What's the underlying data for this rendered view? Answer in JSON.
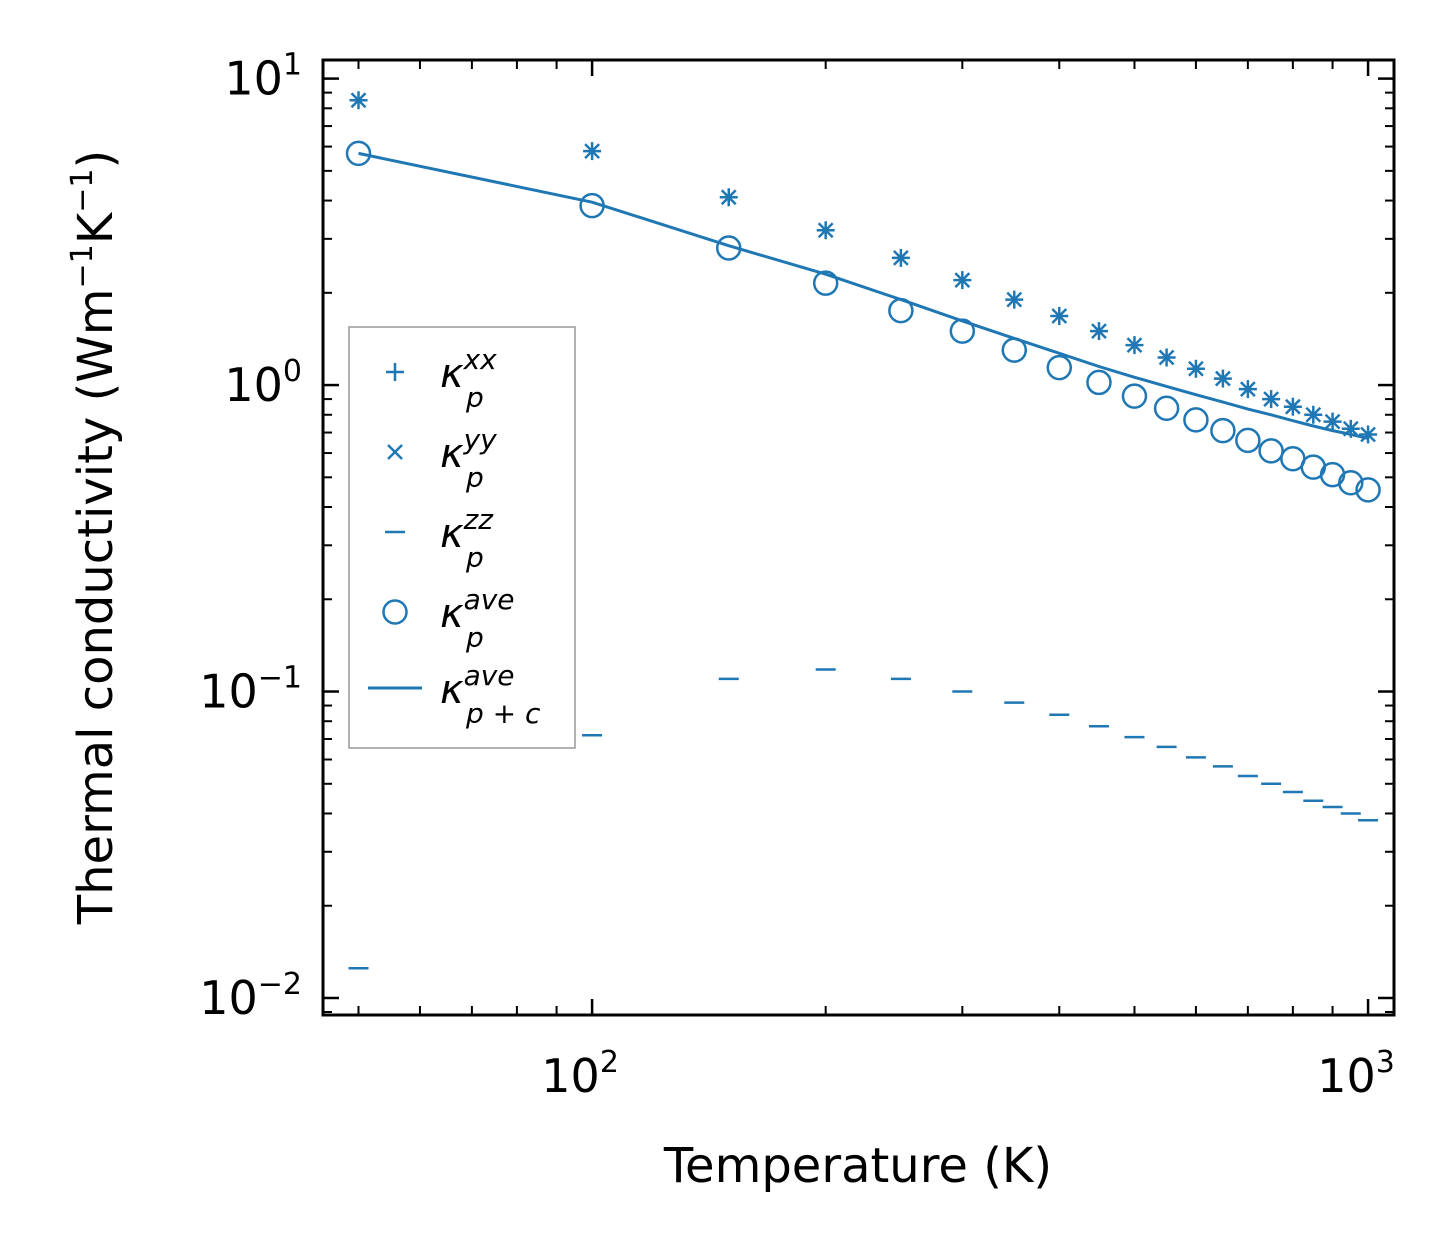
{
  "chart_data": {
    "type": "scatter",
    "xlabel": "Temperature (K)",
    "ylabel": "Thermal conductivity (Wm",
    "ylabel_parts": [
      "Thermal conductivity (Wm",
      "−1",
      "K",
      "−1",
      ")"
    ],
    "xscale": "log",
    "yscale": "log",
    "xlim": [
      45,
      1080
    ],
    "ylim": [
      0.0088,
      11.5
    ],
    "x_ticks": [
      {
        "value": 100,
        "base": "10",
        "exp": "2"
      },
      {
        "value": 1000,
        "base": "10",
        "exp": "3"
      }
    ],
    "y_ticks": [
      {
        "value": 0.01,
        "base": "10",
        "exp": "−2"
      },
      {
        "value": 0.1,
        "base": "10",
        "exp": "−1"
      },
      {
        "value": 1,
        "base": "10",
        "exp": "0"
      },
      {
        "value": 10,
        "base": "10",
        "exp": "1"
      }
    ],
    "x": [
      50,
      100,
      150,
      200,
      250,
      300,
      350,
      400,
      450,
      500,
      550,
      600,
      650,
      700,
      750,
      800,
      850,
      900,
      950,
      1000
    ],
    "series": [
      {
        "name": "kxx",
        "marker": "plus",
        "values": [
          8.5,
          5.8,
          4.1,
          3.2,
          2.6,
          2.2,
          1.9,
          1.68,
          1.5,
          1.35,
          1.23,
          1.13,
          1.05,
          0.97,
          0.9,
          0.85,
          0.8,
          0.76,
          0.72,
          0.69
        ]
      },
      {
        "name": "kyy",
        "marker": "x",
        "values": [
          8.5,
          5.8,
          4.1,
          3.2,
          2.6,
          2.2,
          1.9,
          1.68,
          1.5,
          1.35,
          1.23,
          1.13,
          1.05,
          0.97,
          0.9,
          0.85,
          0.8,
          0.76,
          0.72,
          0.69
        ]
      },
      {
        "name": "kzz",
        "marker": "hline",
        "values": [
          0.0125,
          0.072,
          0.11,
          0.118,
          0.11,
          0.1,
          0.092,
          0.084,
          0.077,
          0.071,
          0.066,
          0.061,
          0.057,
          0.053,
          0.05,
          0.047,
          0.044,
          0.042,
          0.04,
          0.038
        ]
      },
      {
        "name": "kave",
        "marker": "circle",
        "values": [
          5.7,
          3.85,
          2.8,
          2.15,
          1.75,
          1.5,
          1.3,
          1.14,
          1.02,
          0.92,
          0.84,
          0.77,
          0.71,
          0.66,
          0.61,
          0.575,
          0.54,
          0.51,
          0.48,
          0.455
        ]
      },
      {
        "name": "kpc",
        "marker": "line",
        "values": [
          5.7,
          3.95,
          2.85,
          2.3,
          1.9,
          1.62,
          1.42,
          1.27,
          1.15,
          1.06,
          0.99,
          0.93,
          0.88,
          0.835,
          0.8,
          0.765,
          0.735,
          0.71,
          0.69,
          0.67
        ]
      }
    ],
    "legend": {
      "placement": "center-left",
      "entries": [
        {
          "symbol": "κ",
          "sub": "p",
          "sup": "xx"
        },
        {
          "symbol": "κ",
          "sub": "p",
          "sup": "yy"
        },
        {
          "symbol": "κ",
          "sub": "p",
          "sup": "zz"
        },
        {
          "symbol": "κ",
          "sub": "p",
          "sup": "ave"
        },
        {
          "symbol": "κ",
          "sub": "p + c",
          "sup": "ave"
        }
      ]
    },
    "colors": {
      "series": "#1f77b4",
      "axes": "#000000",
      "legend_border": "#999999"
    }
  }
}
